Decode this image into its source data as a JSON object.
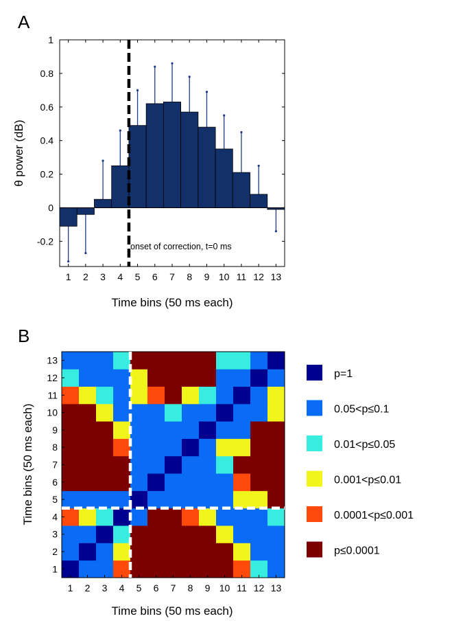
{
  "panel_a": {
    "letter": "A",
    "annotation": "onset of correction, t=0 ms"
  },
  "panel_b": {
    "letter": "B"
  },
  "chart_data": [
    {
      "type": "bar",
      "panel": "A",
      "xlabel": "Time bins (50 ms each)",
      "ylabel": "θ power (dB)",
      "categories": [
        "1",
        "2",
        "3",
        "4",
        "5",
        "6",
        "7",
        "8",
        "9",
        "10",
        "11",
        "12",
        "13"
      ],
      "values": [
        -0.11,
        -0.04,
        0.05,
        0.25,
        0.49,
        0.62,
        0.63,
        0.57,
        0.48,
        0.35,
        0.21,
        0.08,
        -0.01
      ],
      "error_upper": [
        -0.32,
        -0.27,
        0.28,
        0.46,
        0.7,
        0.84,
        0.86,
        0.78,
        0.69,
        0.55,
        0.45,
        0.25,
        -0.14
      ],
      "ylim": [
        -0.35,
        1.0
      ],
      "yticks": [
        "-0.2",
        "0",
        "0.2",
        "0.4",
        "0.6",
        "0.8",
        "1"
      ],
      "ytick_values": [
        -0.2,
        0,
        0.2,
        0.4,
        0.6,
        0.8,
        1
      ],
      "xlim": [
        0.5,
        13.5
      ],
      "marker_line_x": 4.5,
      "colors": {
        "bar": "#12306a",
        "error": "#1c3c86",
        "marker": "#000000"
      }
    },
    {
      "type": "heatmap",
      "panel": "B",
      "xlabel": "Time bins (50 ms each)",
      "ylabel": "Time bins (50 ms each)",
      "x_ticks": [
        "1",
        "2",
        "3",
        "4",
        "5",
        "6",
        "7",
        "8",
        "9",
        "10",
        "11",
        "12",
        "13"
      ],
      "y_ticks": [
        "1",
        "2",
        "3",
        "4",
        "5",
        "6",
        "7",
        "8",
        "9",
        "10",
        "11",
        "12",
        "13"
      ],
      "divider_at": 4.5,
      "matrix": [
        [
          0,
          1,
          1,
          4,
          5,
          5,
          5,
          5,
          5,
          5,
          4,
          2,
          1
        ],
        [
          1,
          0,
          1,
          3,
          5,
          5,
          5,
          5,
          5,
          5,
          3,
          1,
          1
        ],
        [
          1,
          1,
          0,
          2,
          5,
          5,
          5,
          5,
          5,
          3,
          1,
          1,
          1
        ],
        [
          4,
          3,
          2,
          0,
          1,
          5,
          5,
          4,
          3,
          1,
          1,
          1,
          2
        ],
        [
          1,
          1,
          1,
          1,
          0,
          1,
          1,
          1,
          1,
          1,
          3,
          3,
          5
        ],
        [
          5,
          5,
          5,
          5,
          1,
          0,
          1,
          1,
          1,
          1,
          4,
          5,
          5
        ],
        [
          5,
          5,
          5,
          5,
          1,
          1,
          0,
          1,
          1,
          2,
          5,
          5,
          5
        ],
        [
          5,
          5,
          5,
          4,
          1,
          1,
          1,
          0,
          1,
          3,
          3,
          5,
          5
        ],
        [
          5,
          5,
          5,
          3,
          1,
          1,
          1,
          1,
          0,
          1,
          1,
          5,
          5
        ],
        [
          5,
          5,
          3,
          1,
          1,
          1,
          2,
          1,
          1,
          0,
          1,
          1,
          3
        ],
        [
          4,
          3,
          2,
          1,
          3,
          4,
          5,
          3,
          2,
          1,
          0,
          1,
          3
        ],
        [
          2,
          1,
          1,
          1,
          3,
          5,
          5,
          5,
          5,
          1,
          1,
          0,
          1
        ],
        [
          1,
          1,
          1,
          2,
          5,
          5,
          5,
          5,
          5,
          2,
          2,
          1,
          0
        ]
      ],
      "legend": [
        {
          "label": "p=1",
          "color": "#00008f"
        },
        {
          "label": "0.05<p≤0.1",
          "color": "#0a6cf5"
        },
        {
          "label": "0.01<p≤0.05",
          "color": "#38ece0"
        },
        {
          "label": "0.001<p≤0.01",
          "color": "#f2f51c"
        },
        {
          "label": "0.0001<p≤0.001",
          "color": "#ff4a0c"
        },
        {
          "label": "p≤0.0001",
          "color": "#7d0000"
        }
      ],
      "legend_placement": "right"
    }
  ]
}
